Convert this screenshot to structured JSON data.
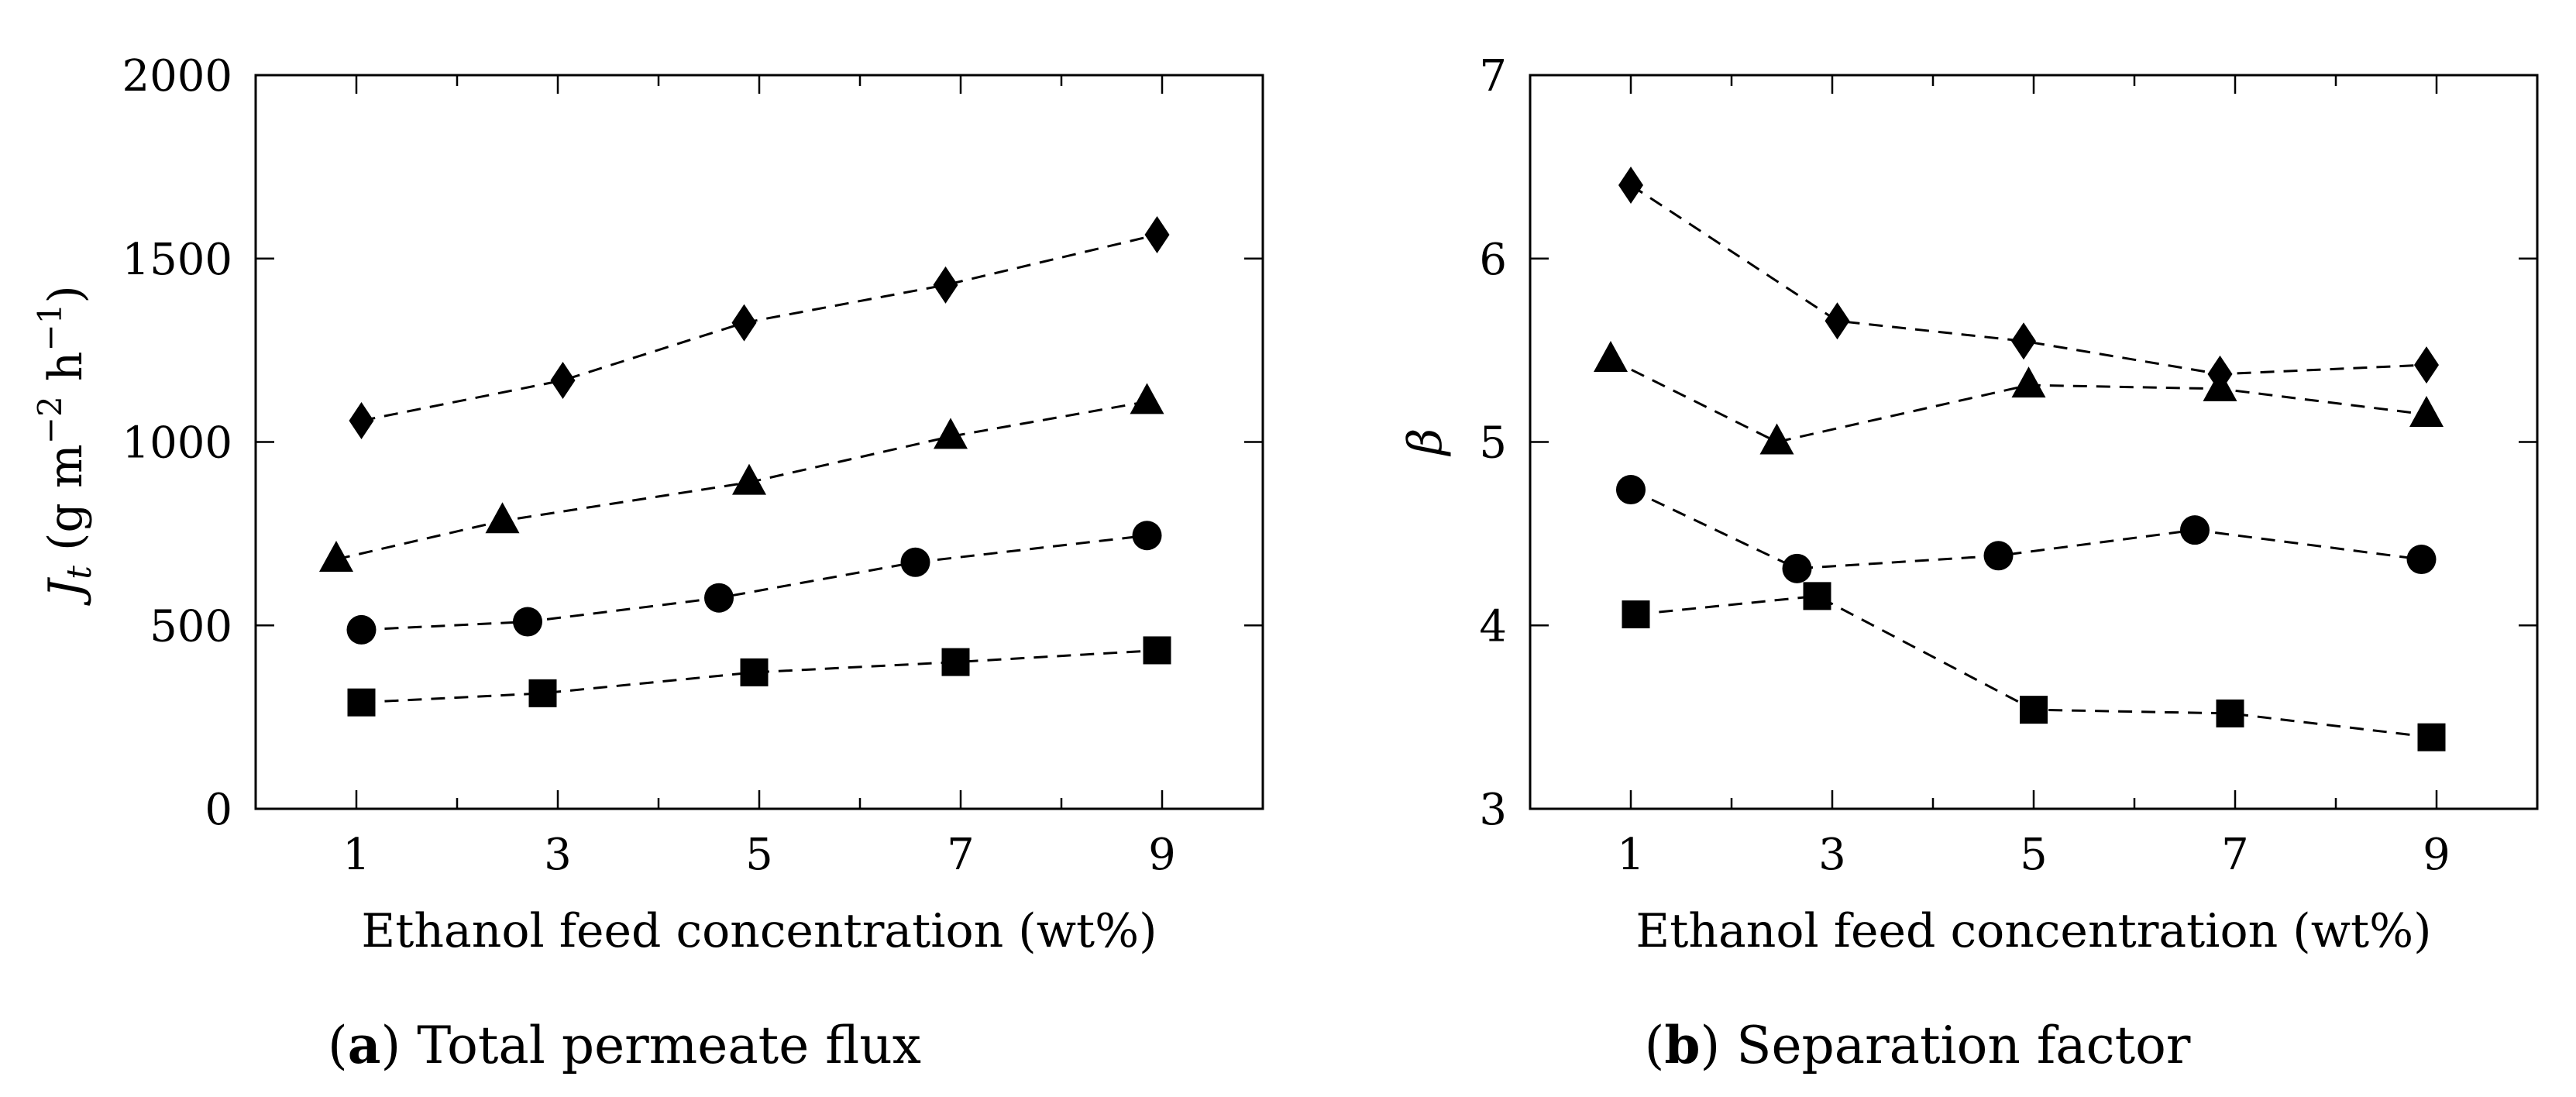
{
  "chart_data": [
    {
      "type": "scatter",
      "panel_letter": "a",
      "caption": "Total permeate flux",
      "xlabel": "Ethanol feed concentration (wt%)",
      "ylabel": {
        "symbol": "J",
        "subscript": "t",
        "units_prefix": " (g m",
        "exp1": "−2",
        "units_mid": " h",
        "exp2": "−1",
        "units_suffix": ")"
      },
      "xlim": [
        0,
        10
      ],
      "ylim": [
        0,
        2000
      ],
      "xticks": [
        1,
        3,
        5,
        7,
        9
      ],
      "xtick_labels": [
        "1",
        "3",
        "5",
        "7",
        "9"
      ],
      "yticks": [
        0,
        500,
        1000,
        1500,
        2000
      ],
      "ytick_labels": [
        "0",
        "500",
        "1000",
        "1500",
        "2000"
      ],
      "line_style": "dashed",
      "series": [
        {
          "marker": "square",
          "x": [
            1.05,
            2.85,
            4.95,
            6.95,
            8.95
          ],
          "y": [
            290,
            315,
            372,
            400,
            432
          ]
        },
        {
          "marker": "circle",
          "x": [
            1.05,
            2.7,
            4.6,
            6.55,
            8.85
          ],
          "y": [
            488,
            510,
            575,
            672,
            745
          ]
        },
        {
          "marker": "triangle",
          "x": [
            0.8,
            2.45,
            4.9,
            6.9,
            8.85
          ],
          "y": [
            680,
            785,
            890,
            1015,
            1110
          ]
        },
        {
          "marker": "diamond",
          "x": [
            1.05,
            3.05,
            4.85,
            6.85,
            8.95
          ],
          "y": [
            1058,
            1168,
            1325,
            1428,
            1565
          ]
        }
      ]
    },
    {
      "type": "scatter",
      "panel_letter": "b",
      "caption": "Separation factor",
      "xlabel": "Ethanol feed concentration (wt%)",
      "ylabel": {
        "symbol": "β"
      },
      "xlim": [
        0,
        10
      ],
      "ylim": [
        3,
        7
      ],
      "xticks": [
        1,
        3,
        5,
        7,
        9
      ],
      "xtick_labels": [
        "1",
        "3",
        "5",
        "7",
        "9"
      ],
      "yticks": [
        3,
        4,
        5,
        6,
        7
      ],
      "ytick_labels": [
        "3",
        "4",
        "5",
        "6",
        "7"
      ],
      "line_style": "dashed",
      "series": [
        {
          "marker": "square",
          "x": [
            1.05,
            2.85,
            5.0,
            6.95,
            8.95
          ],
          "y": [
            4.06,
            4.16,
            3.54,
            3.52,
            3.39
          ]
        },
        {
          "marker": "circle",
          "x": [
            1.0,
            2.65,
            4.65,
            6.6,
            8.85
          ],
          "y": [
            4.74,
            4.31,
            4.38,
            4.52,
            4.36
          ]
        },
        {
          "marker": "triangle",
          "x": [
            0.8,
            2.45,
            4.95,
            6.85,
            8.9
          ],
          "y": [
            5.45,
            5.0,
            5.31,
            5.29,
            5.15
          ]
        },
        {
          "marker": "diamond",
          "x": [
            1.0,
            3.05,
            4.9,
            6.85,
            8.9
          ],
          "y": [
            6.4,
            5.66,
            5.55,
            5.37,
            5.42
          ]
        }
      ]
    }
  ]
}
